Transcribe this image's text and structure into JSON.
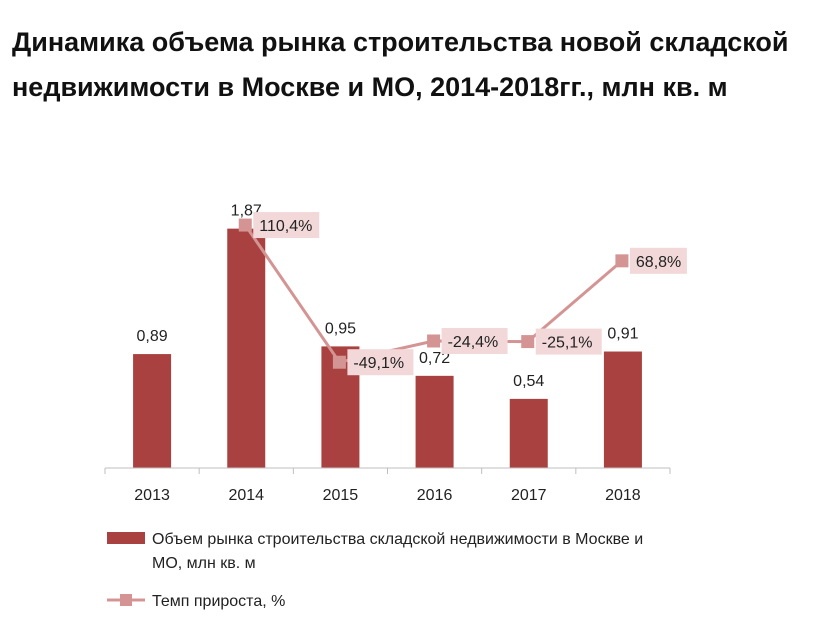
{
  "title": "Динамика объема рынка строительства новой складской недвижимости в Москве и МО, 2014-2018гг., млн кв. м",
  "chart_data": {
    "type": "bar",
    "categories": [
      "2013",
      "2014",
      "2015",
      "2016",
      "2017",
      "2018"
    ],
    "series": [
      {
        "name": "Объем рынка строительства складской недвижимости в Москве и МО, млн кв. м",
        "type": "bar",
        "values": [
          0.89,
          1.87,
          0.95,
          0.72,
          0.54,
          0.91
        ],
        "labels": [
          "0,89",
          "1,87",
          "0,95",
          "0,72",
          "0,54",
          "0,91"
        ],
        "color": "#a8413f"
      },
      {
        "name": "Темп прироста, %",
        "type": "line",
        "values": [
          null,
          110.4,
          -49.1,
          -24.4,
          -25.1,
          68.8
        ],
        "labels": [
          "",
          "110,4%",
          "-49,1%",
          "-24,4%",
          "-25,1%",
          "68,8%"
        ],
        "color": "#d49494"
      }
    ],
    "legend": {
      "placement": "bottom",
      "bar_lines": [
        "Объем рынка строительства складской недвижимости в Москве и",
        "МО, млн кв. м"
      ],
      "line_label": "Темп прироста, %"
    },
    "grid": false,
    "label_box_color": "#f2d8d8"
  }
}
